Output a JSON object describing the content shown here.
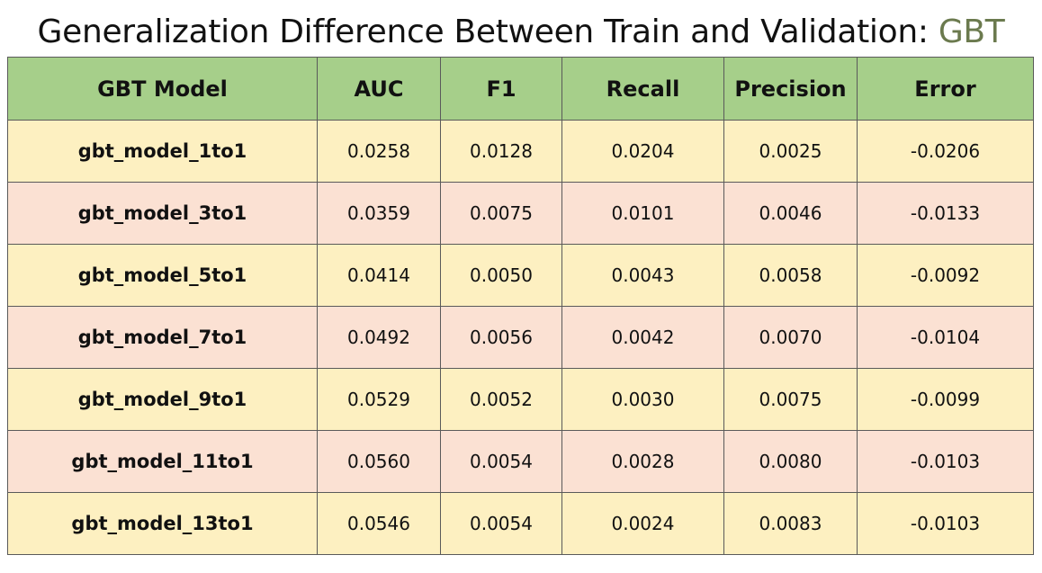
{
  "title": {
    "prefix": "Generalization Difference Between Train and Validation: ",
    "accent": "GBT"
  },
  "colors": {
    "header_bg": "#a6cf8a",
    "row_odd_bg": "#fdf0c1",
    "row_even_bg": "#fbe1d3",
    "accent_text": "#6b7a4e"
  },
  "table": {
    "headers": [
      "GBT Model",
      "AUC",
      "F1",
      "Recall",
      "Precision",
      "Error"
    ],
    "rows": [
      [
        "gbt_model_1to1",
        "0.0258",
        "0.0128",
        "0.0204",
        "0.0025",
        "-0.0206"
      ],
      [
        "gbt_model_3to1",
        "0.0359",
        "0.0075",
        "0.0101",
        "0.0046",
        "-0.0133"
      ],
      [
        "gbt_model_5to1",
        "0.0414",
        "0.0050",
        "0.0043",
        "0.0058",
        "-0.0092"
      ],
      [
        "gbt_model_7to1",
        "0.0492",
        "0.0056",
        "0.0042",
        "0.0070",
        "-0.0104"
      ],
      [
        "gbt_model_9to1",
        "0.0529",
        "0.0052",
        "0.0030",
        "0.0075",
        "-0.0099"
      ],
      [
        "gbt_model_11to1",
        "0.0560",
        "0.0054",
        "0.0028",
        "0.0080",
        "-0.0103"
      ],
      [
        "gbt_model_13to1",
        "0.0546",
        "0.0054",
        "0.0024",
        "0.0083",
        "-0.0103"
      ]
    ]
  }
}
